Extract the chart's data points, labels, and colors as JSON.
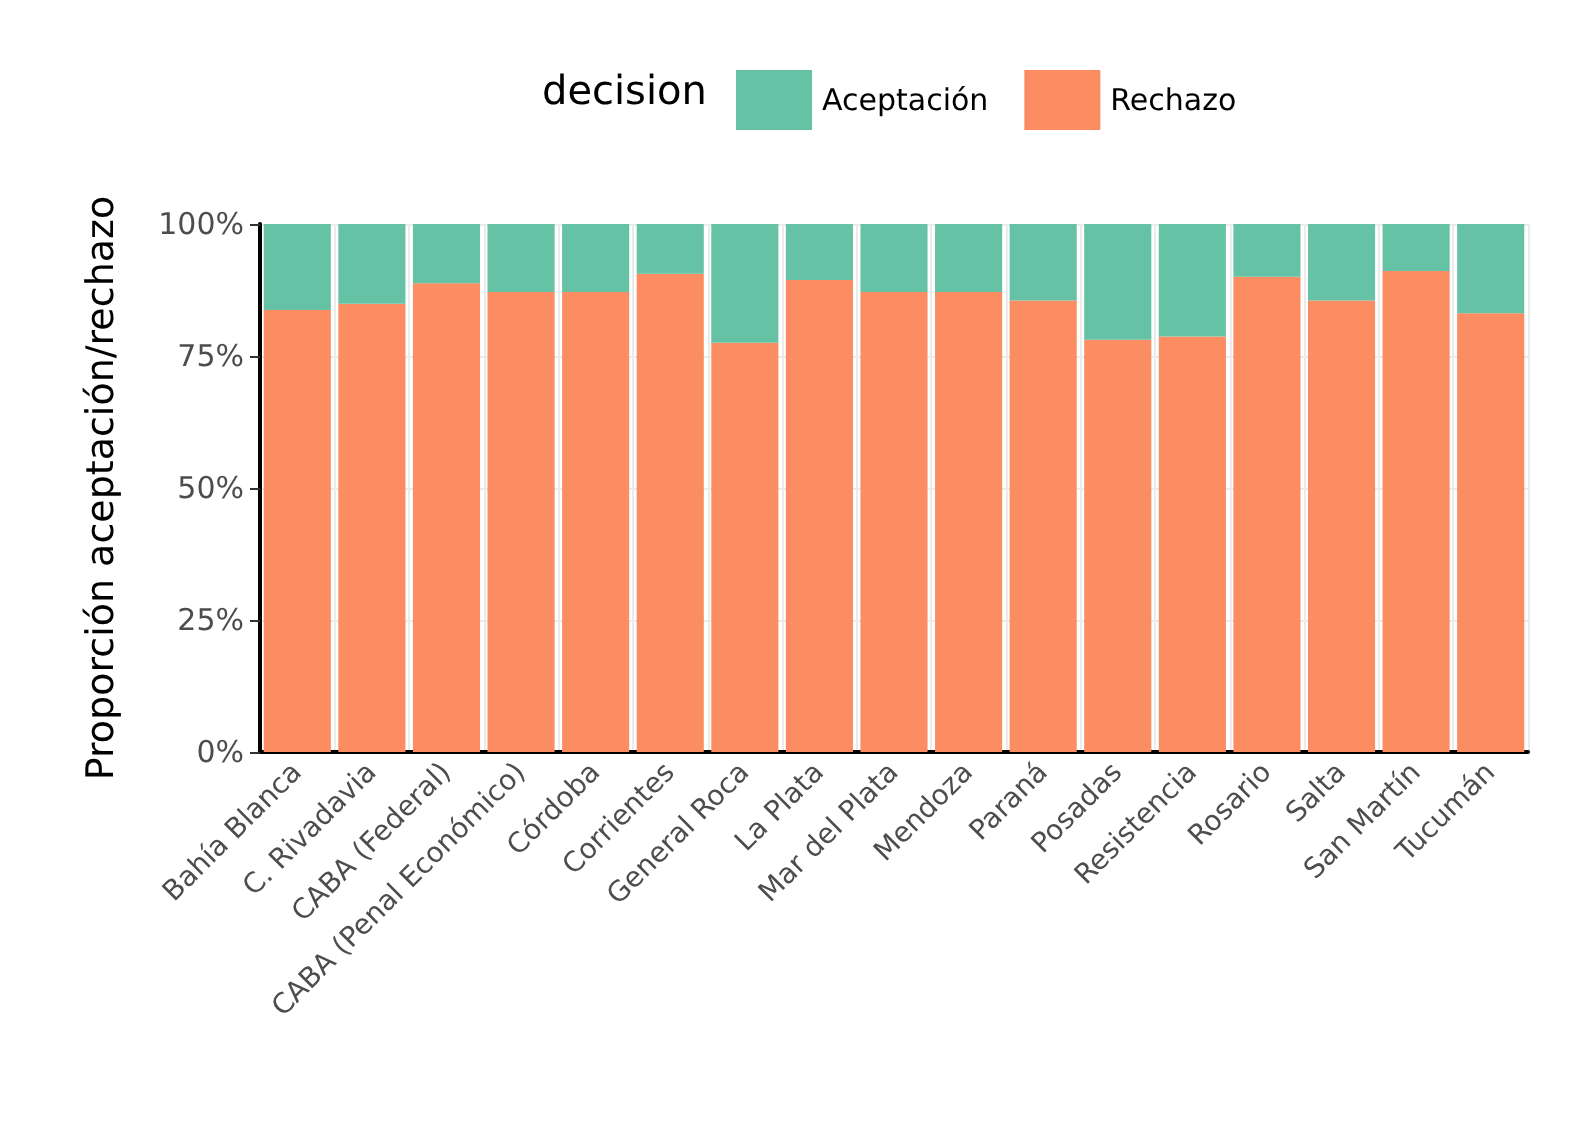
{
  "chart_data": {
    "type": "bar",
    "stacked": true,
    "ylabel": "Proporción aceptación/rechazo",
    "legend_title": "decision",
    "legend": "top",
    "categories": [
      "Bahía Blanca",
      "C. Rivadavia",
      "CABA (Federal)",
      "CABA (Penal Económico)",
      "Córdoba",
      "Corrientes",
      "General Roca",
      "La Plata",
      "Mar del Plata",
      "Mendoza",
      "Paraná",
      "Posadas",
      "Resistencia",
      "Rosario",
      "Salta",
      "San Martín",
      "Tucumán"
    ],
    "series": [
      {
        "name": "Rechazo",
        "color": "#fc8d62",
        "values": [
          83.7,
          84.9,
          88.8,
          87.1,
          87.1,
          90.6,
          77.5,
          89.4,
          87.1,
          87.1,
          85.5,
          78.1,
          78.7,
          90.0,
          85.5,
          91.1,
          83.1
        ]
      },
      {
        "name": "Aceptación",
        "color": "#66c2a5",
        "values": [
          16.3,
          15.1,
          11.2,
          12.9,
          12.9,
          9.4,
          22.5,
          10.6,
          12.9,
          12.9,
          14.5,
          21.9,
          21.3,
          10.0,
          14.5,
          8.9,
          16.9
        ]
      }
    ],
    "ylim": [
      0,
      100
    ],
    "yticks": [
      {
        "value": 0,
        "label": "0%"
      },
      {
        "value": 25,
        "label": "25%"
      },
      {
        "value": 50,
        "label": "50%"
      },
      {
        "value": 75,
        "label": "75%"
      },
      {
        "value": 100,
        "label": "100%"
      }
    ],
    "grid": true
  }
}
